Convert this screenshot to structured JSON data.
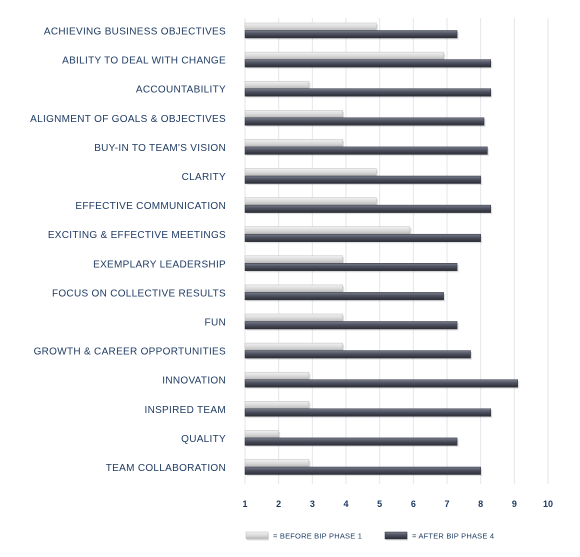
{
  "chart_data": {
    "type": "bar",
    "orientation": "horizontal",
    "categories": [
      "ACHIEVING BUSINESS OBJECTIVES",
      "ABILITY TO DEAL WITH CHANGE",
      "ACCOUNTABILITY",
      "ALIGNMENT OF GOALS & OBJECTIVES",
      "BUY-IN TO TEAM'S VISION",
      "CLARITY",
      "EFFECTIVE COMMUNICATION",
      "EXCITING & EFFECTIVE MEETINGS",
      "EXEMPLARY LEADERSHIP",
      "FOCUS ON COLLECTIVE RESULTS",
      "FUN",
      "GROWTH & CAREER OPPORTUNITIES",
      "INNOVATION",
      "INSPIRED TEAM",
      "QUALITY",
      "TEAM COLLABORATION"
    ],
    "series": [
      {
        "name": "= BEFORE BIP PHASE 1",
        "color": "#d4d4d4",
        "values": [
          4.9,
          6.9,
          2.9,
          3.9,
          3.9,
          4.9,
          4.9,
          5.9,
          3.9,
          3.9,
          3.9,
          3.9,
          2.9,
          2.9,
          2.0,
          2.9
        ]
      },
      {
        "name": "= AFTER BIP PHASE 4",
        "color": "#4a4c58",
        "values": [
          7.3,
          8.3,
          8.3,
          8.1,
          8.2,
          8.0,
          8.3,
          8.0,
          7.3,
          6.9,
          7.3,
          7.7,
          9.1,
          8.3,
          7.3,
          8.0
        ]
      }
    ],
    "x_ticks": [
      "1",
      "2",
      "3",
      "4",
      "5",
      "6",
      "7",
      "8",
      "9",
      "10"
    ],
    "xlim": [
      1,
      10
    ],
    "grid": true,
    "legend": "bottom"
  }
}
